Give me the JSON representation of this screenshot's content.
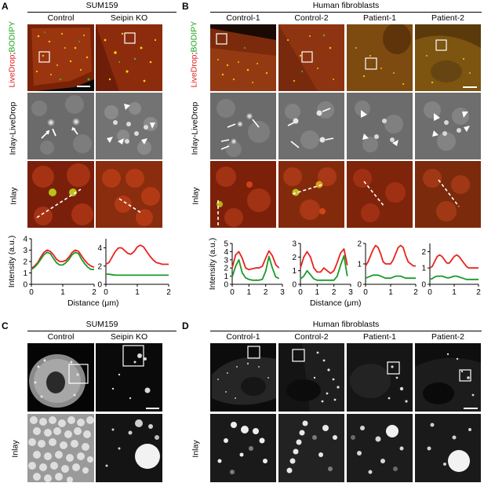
{
  "panel_a": {
    "label": "A",
    "title": "SUM159",
    "columns": [
      "Control",
      "Seipin KO"
    ],
    "row_labels": {
      "stain": [
        "LiveDrop",
        ";",
        "BODIPY"
      ],
      "inlay_livedrop": "Inlay-LiveDrop",
      "inlay": "Inlay"
    },
    "stain_colors": {
      "livedrop": "#e11d1d",
      "sep": "#000000",
      "bodipy": "#1aa31a"
    }
  },
  "panel_b": {
    "label": "B",
    "title": "Human fibroblasts",
    "columns": [
      "Control-1",
      "Control-2",
      "Patient-1",
      "Patient-2"
    ],
    "row_labels": {
      "stain": [
        "LiveDrop",
        ";",
        "BODIPY"
      ],
      "inlay_livedrop": "Inlay-LiveDrop",
      "inlay": "Inlay"
    }
  },
  "panel_c": {
    "label": "C",
    "title": "SUM159",
    "columns": [
      "Control",
      "Seipin KO"
    ],
    "row_label": "Inlay"
  },
  "panel_d": {
    "label": "D",
    "title": "Human fibroblasts",
    "columns": [
      "Control-1",
      "Control-2",
      "Patient-1",
      "Patient-2"
    ],
    "row_label": "Inlay"
  },
  "chart_data": [
    {
      "type": "line",
      "panel": "A",
      "column": "Control",
      "ylabel": "Intensity (a.u.)",
      "xlabel": "",
      "xlim": [
        0,
        2
      ],
      "ylim": [
        0,
        4
      ],
      "xticks": [
        0,
        1,
        2
      ],
      "yticks": [
        0,
        1,
        2,
        3,
        4
      ],
      "series": [
        {
          "color": "#e8231e",
          "x": [
            0,
            0.1,
            0.2,
            0.3,
            0.4,
            0.5,
            0.6,
            0.7,
            0.8,
            0.9,
            1.0,
            1.1,
            1.2,
            1.3,
            1.4,
            1.5,
            1.6,
            1.7,
            1.8,
            1.9,
            2.0
          ],
          "values": [
            1.4,
            1.6,
            1.9,
            2.4,
            2.8,
            3.0,
            2.9,
            2.6,
            2.2,
            2.0,
            2.0,
            2.1,
            2.4,
            2.8,
            3.0,
            2.9,
            2.5,
            2.1,
            1.8,
            1.6,
            1.5
          ]
        },
        {
          "color": "#1a9a2a",
          "x": [
            0,
            0.1,
            0.2,
            0.3,
            0.4,
            0.5,
            0.6,
            0.7,
            0.8,
            0.9,
            1.0,
            1.1,
            1.2,
            1.3,
            1.4,
            1.5,
            1.6,
            1.7,
            1.8,
            1.9,
            2.0
          ],
          "values": [
            1.3,
            1.5,
            1.8,
            2.2,
            2.6,
            2.8,
            2.7,
            2.3,
            1.9,
            1.7,
            1.7,
            1.9,
            2.2,
            2.6,
            2.8,
            2.7,
            2.2,
            1.8,
            1.5,
            1.3,
            1.3
          ]
        }
      ]
    },
    {
      "type": "line",
      "panel": "A",
      "column": "Seipin KO",
      "ylabel": "",
      "xlabel": "",
      "xlim": [
        0,
        2
      ],
      "ylim": [
        0,
        5
      ],
      "xticks": [
        0,
        1,
        2
      ],
      "yticks": [
        0,
        2,
        4
      ],
      "series": [
        {
          "color": "#e8231e",
          "x": [
            0,
            0.1,
            0.2,
            0.3,
            0.4,
            0.5,
            0.6,
            0.7,
            0.8,
            0.9,
            1.0,
            1.1,
            1.2,
            1.3,
            1.4,
            1.5,
            1.6,
            1.7,
            1.8,
            1.9,
            2.0
          ],
          "values": [
            2.2,
            2.4,
            3.0,
            3.6,
            4.0,
            4.0,
            3.7,
            3.4,
            3.3,
            3.6,
            4.1,
            4.3,
            4.1,
            3.6,
            3.1,
            2.7,
            2.4,
            2.3,
            2.2,
            2.2,
            2.2
          ]
        },
        {
          "color": "#1a9a2a",
          "x": [
            0,
            0.1,
            0.2,
            0.3,
            0.4,
            0.5,
            0.6,
            0.7,
            0.8,
            0.9,
            1.0,
            1.1,
            1.2,
            1.3,
            1.4,
            1.5,
            1.6,
            1.7,
            1.8,
            1.9,
            2.0
          ],
          "values": [
            1.1,
            1.1,
            1.05,
            1.0,
            1.0,
            1.0,
            1.0,
            1.0,
            1.0,
            1.0,
            1.0,
            1.0,
            1.0,
            1.0,
            1.0,
            1.0,
            1.0,
            1.0,
            1.0,
            1.0,
            1.0
          ]
        }
      ]
    },
    {
      "type": "line",
      "panel": "B",
      "column": "Control-1",
      "ylabel": "Intensity (a.u.)",
      "xlabel": "",
      "xlim": [
        0,
        3
      ],
      "ylim": [
        0,
        5
      ],
      "xticks": [
        0,
        1,
        2,
        3
      ],
      "yticks": [
        0,
        1,
        2,
        3,
        4,
        5
      ],
      "series": [
        {
          "color": "#e8231e",
          "x": [
            0,
            0.2,
            0.4,
            0.6,
            0.8,
            1.0,
            1.2,
            1.4,
            1.6,
            1.8,
            2.0,
            2.2,
            2.4,
            2.6,
            2.8
          ],
          "values": [
            2.0,
            3.6,
            4.0,
            3.2,
            2.0,
            1.8,
            1.9,
            2.0,
            2.0,
            2.2,
            3.2,
            4.1,
            3.5,
            2.4,
            2.0
          ]
        },
        {
          "color": "#1a9a2a",
          "x": [
            0,
            0.2,
            0.4,
            0.6,
            0.8,
            1.0,
            1.2,
            1.4,
            1.6,
            1.8,
            2.0,
            2.2,
            2.4,
            2.6,
            2.8
          ],
          "values": [
            0.9,
            2.2,
            3.0,
            1.4,
            0.8,
            0.6,
            0.5,
            0.5,
            0.5,
            0.6,
            1.6,
            3.4,
            2.0,
            0.9,
            0.7
          ]
        }
      ]
    },
    {
      "type": "line",
      "panel": "B",
      "column": "Control-2",
      "ylabel": "",
      "xlabel": "",
      "xlim": [
        0,
        3
      ],
      "ylim": [
        0,
        3
      ],
      "xticks": [
        0,
        1,
        2,
        3
      ],
      "yticks": [
        0,
        1,
        2,
        3
      ],
      "series": [
        {
          "color": "#e8231e",
          "x": [
            0,
            0.2,
            0.4,
            0.6,
            0.8,
            1.0,
            1.2,
            1.4,
            1.6,
            1.8,
            2.0,
            2.2,
            2.4,
            2.6,
            2.8
          ],
          "values": [
            1.2,
            2.0,
            2.4,
            2.0,
            1.2,
            0.9,
            0.9,
            1.2,
            1.0,
            0.8,
            1.0,
            1.6,
            2.3,
            2.6,
            1.4
          ]
        },
        {
          "color": "#1a9a2a",
          "x": [
            0,
            0.2,
            0.4,
            0.6,
            0.8,
            1.0,
            1.2,
            1.4,
            1.6,
            1.8,
            2.0,
            2.2,
            2.4,
            2.6,
            2.8
          ],
          "values": [
            0.4,
            0.6,
            1.0,
            0.7,
            0.4,
            0.3,
            0.3,
            0.3,
            0.3,
            0.3,
            0.3,
            0.6,
            1.4,
            2.1,
            0.6
          ]
        }
      ]
    },
    {
      "type": "line",
      "panel": "B",
      "column": "Patient-1",
      "ylabel": "",
      "xlabel": "Distance (μm)",
      "xlim": [
        0,
        2
      ],
      "ylim": [
        0,
        2
      ],
      "xticks": [
        0,
        1,
        2
      ],
      "yticks": [
        0,
        1,
        2
      ],
      "series": [
        {
          "color": "#e8231e",
          "x": [
            0,
            0.1,
            0.2,
            0.3,
            0.4,
            0.5,
            0.6,
            0.7,
            0.8,
            0.9,
            1.0,
            1.1,
            1.2,
            1.3,
            1.4,
            1.5,
            1.6,
            1.7,
            1.8,
            1.9,
            2.0
          ],
          "values": [
            0.9,
            1.1,
            1.4,
            1.7,
            1.9,
            1.8,
            1.5,
            1.1,
            1.0,
            1.0,
            1.0,
            1.2,
            1.5,
            1.8,
            1.9,
            1.8,
            1.4,
            1.1,
            1.0,
            0.9,
            0.9
          ]
        },
        {
          "color": "#1a9a2a",
          "x": [
            0,
            0.1,
            0.2,
            0.3,
            0.4,
            0.5,
            0.6,
            0.7,
            0.8,
            0.9,
            1.0,
            1.1,
            1.2,
            1.3,
            1.4,
            1.5,
            1.6,
            1.7,
            1.8,
            1.9,
            2.0
          ],
          "values": [
            0.3,
            0.35,
            0.4,
            0.45,
            0.45,
            0.45,
            0.4,
            0.35,
            0.3,
            0.3,
            0.3,
            0.35,
            0.4,
            0.4,
            0.4,
            0.35,
            0.3,
            0.3,
            0.3,
            0.3,
            0.3
          ]
        }
      ]
    },
    {
      "type": "line",
      "panel": "B",
      "column": "Patient-2",
      "ylabel": "",
      "xlabel": "",
      "xlim": [
        0,
        2
      ],
      "ylim": [
        0,
        2.5
      ],
      "xticks": [
        0,
        1,
        2
      ],
      "yticks": [
        0,
        1,
        2
      ],
      "series": [
        {
          "color": "#e8231e",
          "x": [
            0,
            0.1,
            0.2,
            0.3,
            0.4,
            0.5,
            0.6,
            0.7,
            0.8,
            0.9,
            1.0,
            1.1,
            1.2,
            1.3,
            1.4,
            1.5,
            1.6,
            1.7,
            1.8,
            1.9,
            2.0
          ],
          "values": [
            1.0,
            1.1,
            1.4,
            1.7,
            1.8,
            1.7,
            1.5,
            1.3,
            1.3,
            1.5,
            1.7,
            1.8,
            1.7,
            1.5,
            1.3,
            1.1,
            1.0,
            1.0,
            1.0,
            1.0,
            1.0
          ]
        },
        {
          "color": "#1a9a2a",
          "x": [
            0,
            0.1,
            0.2,
            0.3,
            0.4,
            0.5,
            0.6,
            0.7,
            0.8,
            0.9,
            1.0,
            1.1,
            1.2,
            1.3,
            1.4,
            1.5,
            1.6,
            1.7,
            1.8,
            1.9,
            2.0
          ],
          "values": [
            0.3,
            0.35,
            0.45,
            0.5,
            0.5,
            0.5,
            0.45,
            0.4,
            0.4,
            0.45,
            0.5,
            0.5,
            0.45,
            0.4,
            0.35,
            0.3,
            0.3,
            0.3,
            0.3,
            0.3,
            0.3
          ]
        }
      ]
    }
  ]
}
